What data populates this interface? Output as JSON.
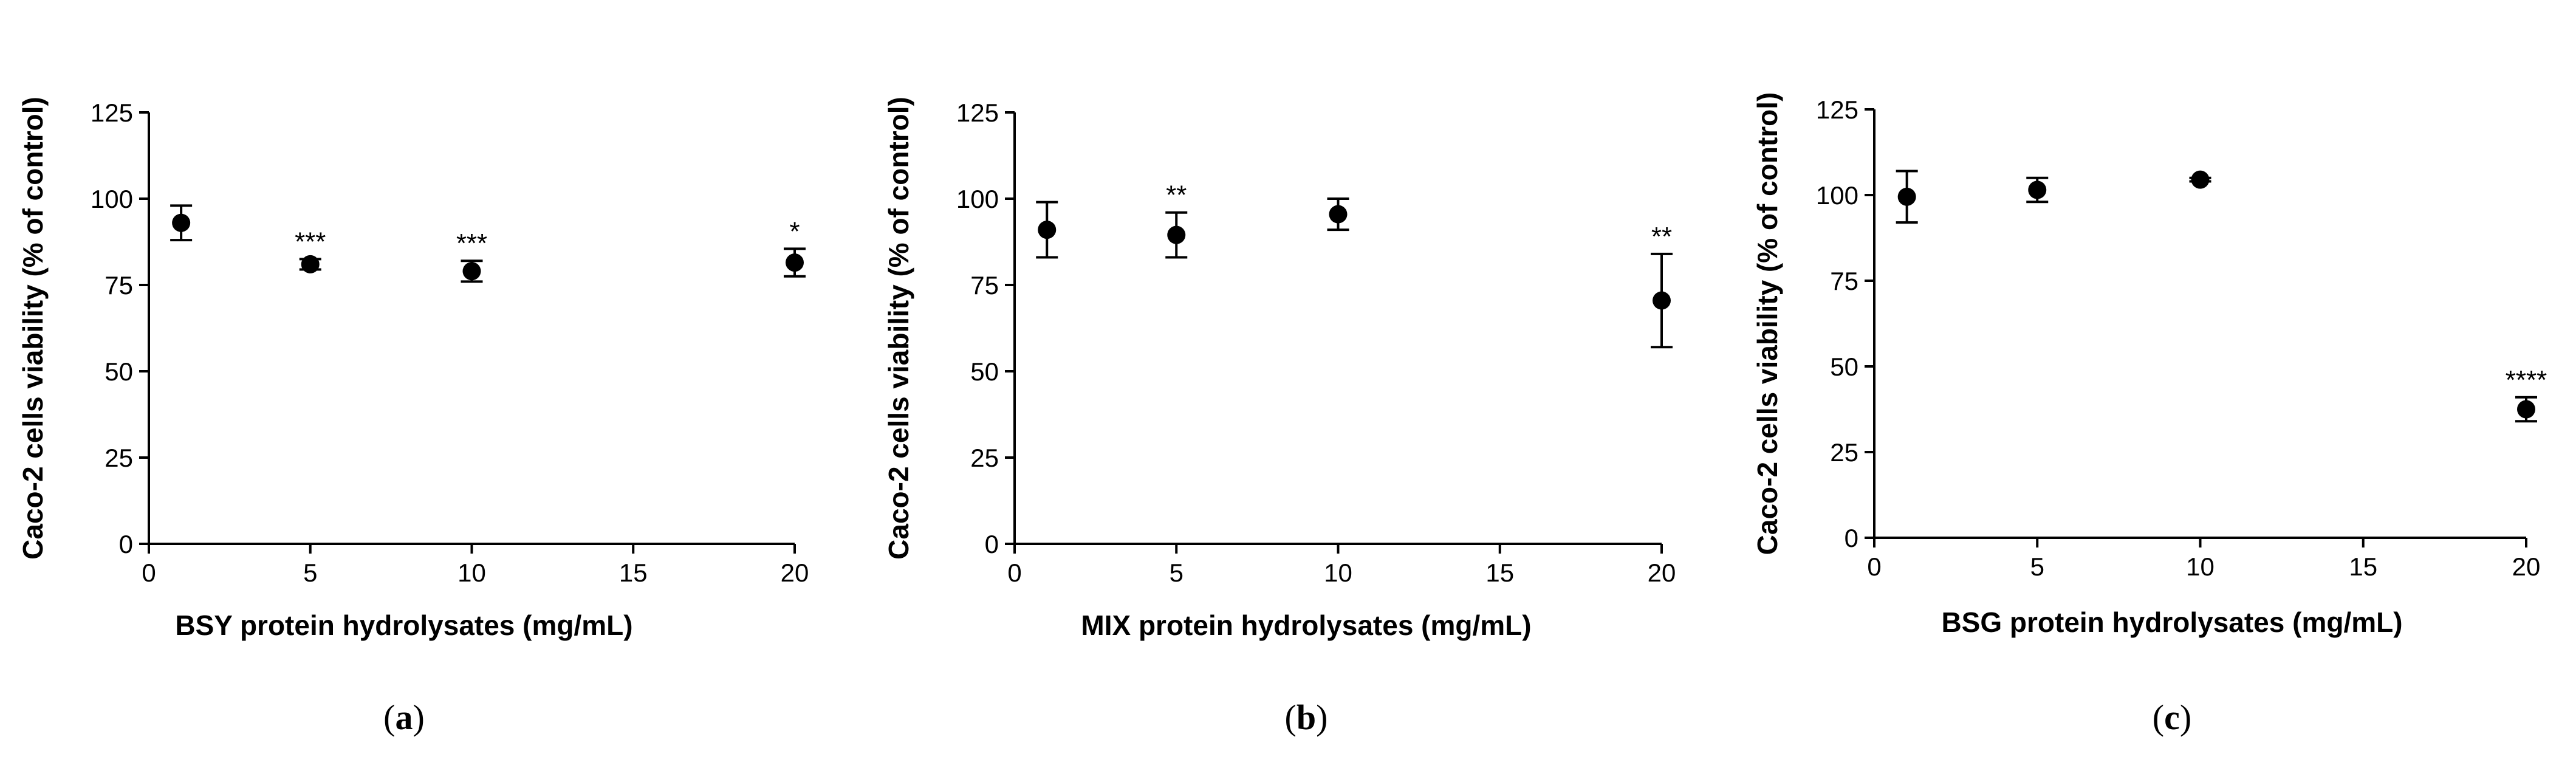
{
  "figure": {
    "panels": [
      {
        "panel_label": "(a)",
        "letter": "a"
      },
      {
        "panel_label": "(b)",
        "letter": "b"
      },
      {
        "panel_label": "(c)",
        "letter": "c"
      }
    ]
  },
  "chart_data": [
    {
      "type": "scatter",
      "title": "",
      "xlabel": "BSY protein hydrolysates (mg/mL)",
      "ylabel": "Caco-2 cells viability (% of control)",
      "xlim": [
        0,
        20
      ],
      "ylim": [
        0,
        125
      ],
      "xticks": [
        0,
        5,
        10,
        15,
        20
      ],
      "yticks": [
        0,
        25,
        50,
        75,
        100,
        125
      ],
      "grid": false,
      "error_bars": true,
      "points": [
        {
          "x": 1,
          "y": 93,
          "err": 5,
          "sig": ""
        },
        {
          "x": 5,
          "y": 81,
          "err": 1.5,
          "sig": "***"
        },
        {
          "x": 10,
          "y": 79,
          "err": 3,
          "sig": "***"
        },
        {
          "x": 20,
          "y": 81.5,
          "err": 4,
          "sig": "*"
        }
      ]
    },
    {
      "type": "scatter",
      "title": "",
      "xlabel": "MIX protein hydrolysates (mg/mL)",
      "ylabel": "Caco-2 cells viability (% of control)",
      "xlim": [
        0,
        20
      ],
      "ylim": [
        0,
        125
      ],
      "xticks": [
        0,
        5,
        10,
        15,
        20
      ],
      "yticks": [
        0,
        25,
        50,
        75,
        100,
        125
      ],
      "grid": false,
      "error_bars": true,
      "points": [
        {
          "x": 1,
          "y": 91,
          "err": 8,
          "sig": ""
        },
        {
          "x": 5,
          "y": 89.5,
          "err": 6.5,
          "sig": "**"
        },
        {
          "x": 10,
          "y": 95.5,
          "err": 4.5,
          "sig": ""
        },
        {
          "x": 20,
          "y": 70.5,
          "err": 13.5,
          "sig": "**"
        }
      ]
    },
    {
      "type": "scatter",
      "title": "",
      "xlabel": "BSG protein hydrolysates (mg/mL)",
      "ylabel": "Caco-2 cells viability (% of control)",
      "xlim": [
        0,
        20
      ],
      "ylim": [
        0,
        125
      ],
      "xticks": [
        0,
        5,
        10,
        15,
        20
      ],
      "yticks": [
        0,
        25,
        50,
        75,
        100,
        125
      ],
      "grid": false,
      "error_bars": true,
      "points": [
        {
          "x": 1,
          "y": 99.5,
          "err": 7.5,
          "sig": ""
        },
        {
          "x": 5,
          "y": 101.5,
          "err": 3.5,
          "sig": ""
        },
        {
          "x": 10,
          "y": 104.5,
          "err": 0.5,
          "sig": ""
        },
        {
          "x": 20,
          "y": 37.5,
          "err": 3.5,
          "sig": "****"
        }
      ]
    }
  ]
}
